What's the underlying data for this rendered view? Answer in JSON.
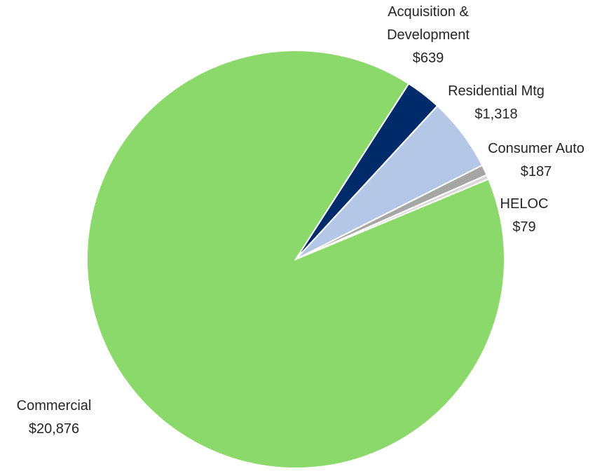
{
  "chart_data": {
    "type": "pie",
    "categories": [
      "Commercial",
      "Acquisition & Development",
      "Residential Mtg",
      "Consumer Auto",
      "HELOC"
    ],
    "values": [
      20876,
      639,
      1318,
      187,
      79
    ],
    "value_labels": [
      "$20,876",
      "$639",
      "$1,318",
      "$187",
      "$79"
    ],
    "colors": [
      "#8cd96b",
      "#002b6b",
      "#b4c7e7",
      "#a6a6a6",
      "#d9d9d9"
    ]
  }
}
